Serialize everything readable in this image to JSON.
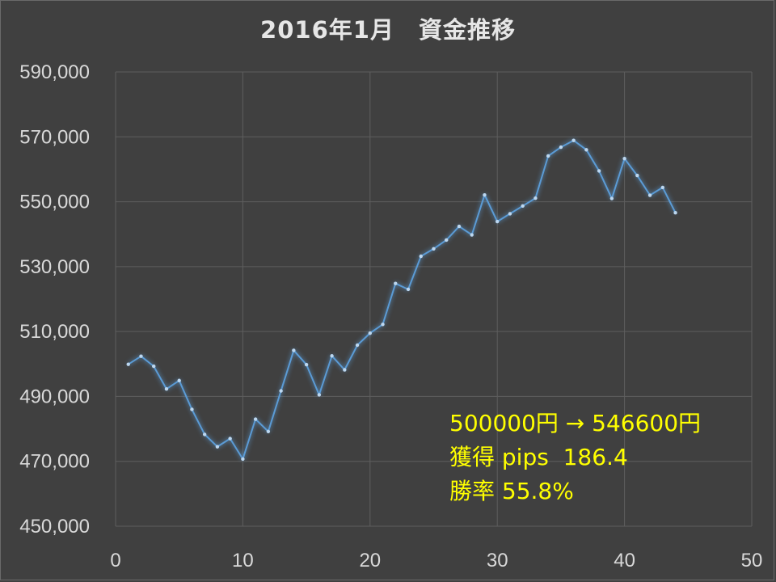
{
  "chart_data": {
    "type": "line",
    "title": "2016年1月　資金推移",
    "xlabel": "",
    "ylabel": "",
    "xlim": [
      0,
      50
    ],
    "ylim": [
      450000,
      590000
    ],
    "x_ticks": [
      "0",
      "10",
      "20",
      "30",
      "40",
      "50"
    ],
    "y_ticks": [
      "590,000",
      "570,000",
      "550,000",
      "530,000",
      "510,000",
      "490,000",
      "470,000",
      "450,000"
    ],
    "grid": true,
    "series": [
      {
        "color": "#5b9bd5",
        "x": [
          1,
          2,
          3,
          4,
          5,
          6,
          7,
          8,
          9,
          10,
          11,
          12,
          13,
          14,
          15,
          16,
          17,
          18,
          19,
          20,
          21,
          22,
          23,
          24,
          25,
          26,
          27,
          28,
          29,
          30,
          31,
          32,
          33,
          34,
          35,
          36,
          37,
          38,
          39,
          40,
          41,
          42,
          43,
          44
        ],
        "y": [
          499900,
          502400,
          499300,
          492300,
          494900,
          486000,
          478300,
          474500,
          477000,
          470700,
          483000,
          479200,
          491700,
          504200,
          499800,
          490500,
          502500,
          498200,
          505800,
          509500,
          512200,
          524800,
          523000,
          533200,
          535500,
          538200,
          542400,
          539800,
          552100,
          543900,
          546300,
          548700,
          551100,
          564100,
          566800,
          568900,
          566000,
          559500,
          551000,
          563300,
          558100,
          552000,
          554400,
          546600
        ]
      }
    ],
    "annotations": [
      "500000円 → 546600円",
      "獲得 pips  186.4",
      "勝率 55.8%"
    ]
  }
}
